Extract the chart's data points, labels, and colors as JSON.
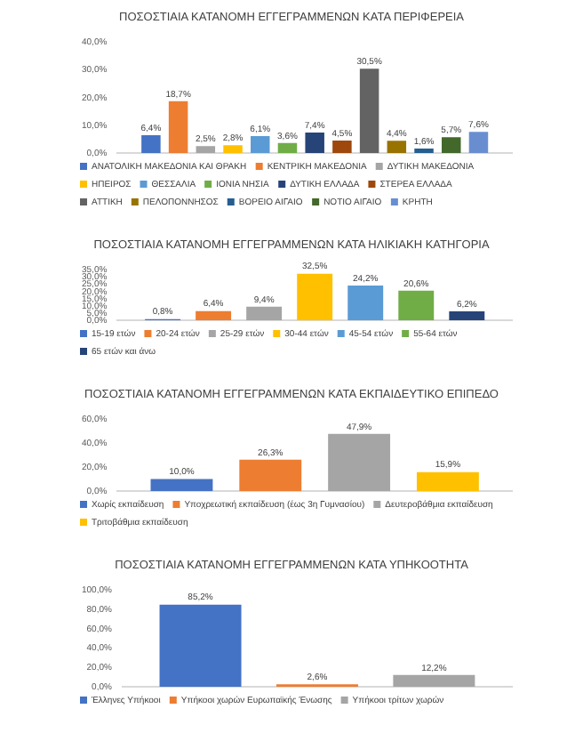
{
  "chart_data": [
    {
      "type": "bar",
      "title": "ΠΟΣΟΣΤΙΑΙΑ ΚΑΤΑΝΟΜΗ ΕΓΓΕΓΡΑΜΜΕΝΩΝ ΚΑΤΑ ΠΕΡΙΦΕΡΕΙΑ",
      "categories": [
        null
      ],
      "series": [
        {
          "name": "ΑΝΑΤΟΛΙΚΗ ΜΑΚΕΔΟΝΙΑ ΚΑΙ ΘΡΑΚΗ",
          "color": "#4472c4",
          "values": [
            6.4
          ],
          "value_labels": [
            "6,4%"
          ]
        },
        {
          "name": "ΚΕΝΤΡΙΚΗ ΜΑΚΕΔΟΝΙΑ",
          "color": "#ed7d31",
          "values": [
            18.7
          ],
          "value_labels": [
            "18,7%"
          ]
        },
        {
          "name": "ΔΥΤΙΚΗ ΜΑΚΕΔΟΝΙΑ",
          "color": "#a5a5a5",
          "values": [
            2.5
          ],
          "value_labels": [
            "2,5%"
          ]
        },
        {
          "name": "ΗΠΕΙΡΟΣ",
          "color": "#ffc000",
          "values": [
            2.8
          ],
          "value_labels": [
            "2,8%"
          ]
        },
        {
          "name": "ΘΕΣΣΑΛΙΑ",
          "color": "#5b9bd5",
          "values": [
            6.1
          ],
          "value_labels": [
            "6,1%"
          ]
        },
        {
          "name": "ΙΟΝΙΑ ΝΗΣΙΑ",
          "color": "#70ad47",
          "values": [
            3.6
          ],
          "value_labels": [
            "3,6%"
          ]
        },
        {
          "name": "ΔΥΤΙΚΗ ΕΛΛΑΔΑ",
          "color": "#264478",
          "values": [
            7.4
          ],
          "value_labels": [
            "7,4%"
          ]
        },
        {
          "name": "ΣΤΕΡΕΑ ΕΛΛΑΔΑ",
          "color": "#9e480e",
          "values": [
            4.5
          ],
          "value_labels": [
            "4,5%"
          ]
        },
        {
          "name": "ΑΤΤΙΚΗ",
          "color": "#636363",
          "values": [
            30.5
          ],
          "value_labels": [
            "30,5%"
          ]
        },
        {
          "name": "ΠΕΛΟΠΟΝΝΗΣΟΣ",
          "color": "#997300",
          "values": [
            4.4
          ],
          "value_labels": [
            "4,4%"
          ]
        },
        {
          "name": "ΒΟΡΕΙΟ ΑΙΓΑΙΟ",
          "color": "#255e91",
          "values": [
            1.6
          ],
          "value_labels": [
            "1,6%"
          ]
        },
        {
          "name": "ΝΟΤΙΟ ΑΙΓΑΙΟ",
          "color": "#43682b",
          "values": [
            5.7
          ],
          "value_labels": [
            "5,7%"
          ]
        },
        {
          "name": "ΚΡΗΤΗ",
          "color": "#698ed0",
          "values": [
            7.6
          ],
          "value_labels": [
            "7,6%"
          ]
        }
      ],
      "ylim": [
        0,
        40
      ],
      "yticks": [
        {
          "value": 0,
          "label": "0,0%"
        },
        {
          "value": 10,
          "label": "10,0%"
        },
        {
          "value": 20,
          "label": "20,0%"
        },
        {
          "value": 30,
          "label": "30,0%"
        },
        {
          "value": 40,
          "label": "40,0%"
        }
      ],
      "tick_labels": "y",
      "legend": "bottom"
    },
    {
      "type": "bar",
      "title": "ΠΟΣΟΣΤΙΑΙΑ ΚΑΤΑΝΟΜΗ ΕΓΓΕΓΡΑΜΜΕΝΩΝ ΚΑΤΑ ΗΛΙΚΙΑΚΗ ΚΑΤΗΓΟΡΙΑ",
      "categories": [
        null
      ],
      "series": [
        {
          "name": "15-19 ετών",
          "color": "#4472c4",
          "values": [
            0.8
          ],
          "value_labels": [
            "0,8%"
          ]
        },
        {
          "name": "20-24 ετών",
          "color": "#ed7d31",
          "values": [
            6.4
          ],
          "value_labels": [
            "6,4%"
          ]
        },
        {
          "name": "25-29 ετών",
          "color": "#a5a5a5",
          "values": [
            9.4
          ],
          "value_labels": [
            "9,4%"
          ]
        },
        {
          "name": "30-44 ετών",
          "color": "#ffc000",
          "values": [
            32.5
          ],
          "value_labels": [
            "32,5%"
          ]
        },
        {
          "name": "45-54 ετών",
          "color": "#5b9bd5",
          "values": [
            24.2
          ],
          "value_labels": [
            "24,2%"
          ]
        },
        {
          "name": "55-64 ετών",
          "color": "#70ad47",
          "values": [
            20.6
          ],
          "value_labels": [
            "20,6%"
          ]
        },
        {
          "name": "65 ετών και άνω",
          "color": "#264478",
          "values": [
            6.2
          ],
          "value_labels": [
            "6,2%"
          ]
        }
      ],
      "ylim": [
        0,
        35
      ],
      "yticks": [
        {
          "value": 0,
          "label": "0,0%"
        },
        {
          "value": 5,
          "label": "5,0%"
        },
        {
          "value": 10,
          "label": "10,0%"
        },
        {
          "value": 15,
          "label": "15,0%"
        },
        {
          "value": 20,
          "label": "20,0%"
        },
        {
          "value": 25,
          "label": "25,0%"
        },
        {
          "value": 30,
          "label": "30,0%"
        },
        {
          "value": 35,
          "label": "35,0%"
        }
      ],
      "tick_labels": "y",
      "legend": "bottom"
    },
    {
      "type": "bar",
      "title": "ΠΟΣΟΣΤΙΑΙΑ ΚΑΤΑΝΟΜΗ ΕΓΓΕΓΡΑΜΜΕΝΩΝ ΚΑΤΑ ΕΚΠΑΙΔΕΥΤΙΚΟ ΕΠΙΠΕΔΟ",
      "categories": [
        null
      ],
      "series": [
        {
          "name": "Χωρίς εκπαίδευση",
          "color": "#4472c4",
          "values": [
            10.0
          ],
          "value_labels": [
            "10,0%"
          ]
        },
        {
          "name": "Υποχρεωτική εκπαίδευση (έως 3η Γυμνασίου)",
          "color": "#ed7d31",
          "values": [
            26.3
          ],
          "value_labels": [
            "26,3%"
          ]
        },
        {
          "name": "Δευτεροβάθμια εκπαίδευση",
          "color": "#a5a5a5",
          "values": [
            47.9
          ],
          "value_labels": [
            "47,9%"
          ]
        },
        {
          "name": "Τριτοβάθμια εκπαίδευση",
          "color": "#ffc000",
          "values": [
            15.9
          ],
          "value_labels": [
            "15,9%"
          ]
        }
      ],
      "ylim": [
        0,
        60
      ],
      "yticks": [
        {
          "value": 0,
          "label": "0,0%"
        },
        {
          "value": 20,
          "label": "20,0%"
        },
        {
          "value": 40,
          "label": "40,0%"
        },
        {
          "value": 60,
          "label": "60,0%"
        }
      ],
      "tick_labels": "y",
      "legend": "bottom"
    },
    {
      "type": "bar",
      "title": "ΠΟΣΟΣΤΙΑΙΑ ΚΑΤΑΝΟΜΗ ΕΓΓΕΓΡΑΜΜΕΝΩΝ ΚΑΤΑ ΥΠΗΚΟΟΤΗΤΑ",
      "categories": [
        null
      ],
      "series": [
        {
          "name": "Έλληνες Υπήκοοι",
          "color": "#4472c4",
          "values": [
            85.2
          ],
          "value_labels": [
            "85,2%"
          ]
        },
        {
          "name": "Υπήκοοι χωρών Ευρωπαϊκής Ένωσης",
          "color": "#ed7d31",
          "values": [
            2.6
          ],
          "value_labels": [
            "2,6%"
          ]
        },
        {
          "name": "Υπήκοοι τρίτων χωρών",
          "color": "#a5a5a5",
          "values": [
            12.2
          ],
          "value_labels": [
            "12,2%"
          ]
        }
      ],
      "ylim": [
        0,
        100
      ],
      "yticks": [
        {
          "value": 0,
          "label": "0,0%"
        },
        {
          "value": 20,
          "label": "20,0%"
        },
        {
          "value": 40,
          "label": "40,0%"
        },
        {
          "value": 60,
          "label": "60,0%"
        },
        {
          "value": 80,
          "label": "80,0%"
        },
        {
          "value": 100,
          "label": "100,0%"
        }
      ],
      "tick_labels": "y",
      "legend": "bottom"
    }
  ]
}
